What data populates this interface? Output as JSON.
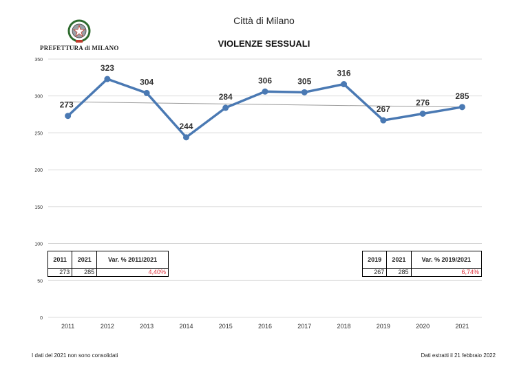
{
  "header": {
    "city": "Città di Milano",
    "office": "PREFETTURA di MILANO"
  },
  "chart_data": {
    "type": "line",
    "title": "VIOLENZE SESSUALI",
    "x": [
      "2011",
      "2012",
      "2013",
      "2014",
      "2015",
      "2016",
      "2017",
      "2018",
      "2019",
      "2020",
      "2021"
    ],
    "series": [
      {
        "values": [
          273,
          323,
          304,
          244,
          284,
          306,
          305,
          316,
          267,
          276,
          285
        ],
        "color": "#4a79b3"
      }
    ],
    "trendline": {
      "start": 292,
      "end": 285,
      "color": "#9a9a9a"
    },
    "data_labels": [
      "273",
      "323",
      "304",
      "244",
      "284",
      "306",
      "305",
      "316",
      "267",
      "276",
      "285"
    ],
    "yticks": [
      "0",
      "50",
      "100",
      "150",
      "200",
      "250",
      "300",
      "350"
    ],
    "ylim": [
      0,
      350
    ],
    "grid": true,
    "tables": [
      {
        "h1": "2011",
        "h2": "2021",
        "h3": "Var. % 2011/2021",
        "v1": "273",
        "v2": "285",
        "v3": "4,40%"
      },
      {
        "h1": "2019",
        "h2": "2021",
        "h3": "Var. % 2019/2021",
        "v1": "267",
        "v2": "285",
        "v3": "6,74%"
      }
    ],
    "accent_red": "#e0303a"
  },
  "footer": {
    "note": "I dati del 2021 non sono consolidati",
    "extracted": "Dati estratti il 21 febbraio 2022"
  }
}
